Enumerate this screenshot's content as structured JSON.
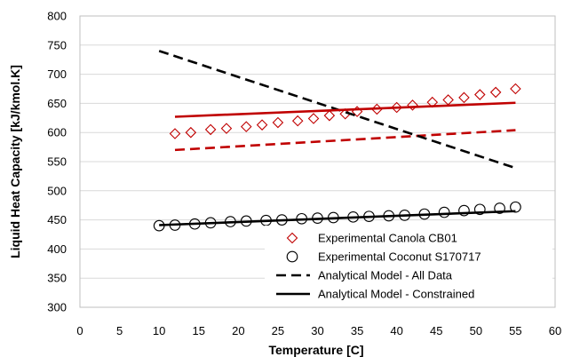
{
  "chart_data": {
    "type": "scatter",
    "title": "",
    "xlabel": "Temperature [C]",
    "ylabel": "Liquid Heat Capacity [kJ/kmol.K]",
    "xlim": [
      0,
      60
    ],
    "ylim": [
      300,
      800
    ],
    "xticks": [
      0,
      5,
      10,
      15,
      20,
      25,
      30,
      35,
      40,
      45,
      50,
      55,
      60
    ],
    "yticks": [
      300,
      350,
      400,
      450,
      500,
      550,
      600,
      650,
      700,
      750,
      800
    ],
    "grid": "horizontal",
    "legend_position": "bottom-right",
    "colors": {
      "red": "#c00000",
      "black": "#000000",
      "grid": "#d9d9d9"
    },
    "series": [
      {
        "name": "Experimental Canola CB01",
        "style": "diamond-marker",
        "color": "#c00000",
        "points": [
          [
            12,
            598
          ],
          [
            14,
            600
          ],
          [
            16.5,
            605
          ],
          [
            18.5,
            607
          ],
          [
            21,
            610
          ],
          [
            23,
            613
          ],
          [
            25,
            617
          ],
          [
            27.5,
            620
          ],
          [
            29.5,
            624
          ],
          [
            31.5,
            629
          ],
          [
            33.5,
            632
          ],
          [
            35,
            636
          ],
          [
            37.5,
            640
          ],
          [
            40,
            643
          ],
          [
            42,
            647
          ],
          [
            44.5,
            652
          ],
          [
            46.5,
            656
          ],
          [
            48.5,
            660
          ],
          [
            50.5,
            665
          ],
          [
            52.5,
            669
          ],
          [
            55,
            675
          ]
        ]
      },
      {
        "name": "Experimental Coconut S170717",
        "style": "circle-marker",
        "color": "#000000",
        "points": [
          [
            10,
            440
          ],
          [
            12,
            441
          ],
          [
            14.5,
            443
          ],
          [
            16.5,
            445
          ],
          [
            19,
            447
          ],
          [
            21,
            448
          ],
          [
            23.5,
            449
          ],
          [
            25.5,
            450
          ],
          [
            28,
            452
          ],
          [
            30,
            453
          ],
          [
            32,
            454
          ],
          [
            34.5,
            455
          ],
          [
            36.5,
            456
          ],
          [
            39,
            457
          ],
          [
            41,
            458
          ],
          [
            43.5,
            460
          ],
          [
            46,
            463
          ],
          [
            48.5,
            466
          ],
          [
            50.5,
            468
          ],
          [
            53,
            470
          ],
          [
            55,
            472
          ]
        ]
      },
      {
        "name": "Analytical Model - All Data",
        "style": "dashed-line",
        "color": "#c00000",
        "points": [
          [
            12,
            570
          ],
          [
            55,
            604
          ]
        ]
      },
      {
        "name": "Analytical Model - All Data",
        "style": "dashed-line",
        "color": "#000000",
        "points": [
          [
            10,
            740
          ],
          [
            55,
            539
          ]
        ]
      },
      {
        "name": "Analytical Model - Constrained",
        "style": "solid-line",
        "color": "#c00000",
        "points": [
          [
            12,
            627
          ],
          [
            55,
            651
          ]
        ]
      },
      {
        "name": "Analytical Model - Constrained",
        "style": "solid-line",
        "color": "#000000",
        "points": [
          [
            10,
            441
          ],
          [
            55,
            465
          ]
        ]
      }
    ],
    "legend": [
      {
        "label": "Experimental Canola CB01",
        "symbol": "diamond-icon",
        "color": "#c00000"
      },
      {
        "label": "Experimental Coconut S170717",
        "symbol": "circle-icon",
        "color": "#000000"
      },
      {
        "label": "Analytical Model - All Data",
        "symbol": "dashed-line-icon",
        "color": "#000000"
      },
      {
        "label": "Analytical Model - Constrained",
        "symbol": "solid-line-icon",
        "color": "#000000"
      }
    ]
  }
}
